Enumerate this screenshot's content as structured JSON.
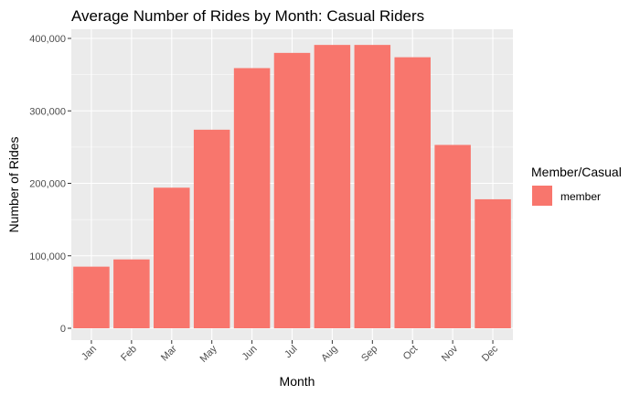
{
  "chart_data": {
    "type": "bar",
    "title": "Average Number of Rides by Month: Casual Riders",
    "xlabel": "Month",
    "ylabel": "Number of Rides",
    "categories": [
      "Jan",
      "Feb",
      "Mar",
      "May",
      "Jun",
      "Jul",
      "Aug",
      "Sep",
      "Oct",
      "Nov",
      "Dec"
    ],
    "series": [
      {
        "name": "member",
        "values": [
          85000,
          95000,
          194000,
          274000,
          359000,
          380000,
          391000,
          391000,
          374000,
          253000,
          178000
        ]
      }
    ],
    "ylim": [
      0,
      420000
    ],
    "y_ticks": [
      0,
      100000,
      200000,
      300000,
      400000
    ],
    "y_tick_labels": [
      "0",
      "100,000",
      "200,000",
      "300,000",
      "400,000"
    ],
    "legend": {
      "title": "Member/Casual",
      "position": "right"
    },
    "grid": true,
    "colors": {
      "bar": "#F8766D",
      "panel": "#EBEBEB",
      "grid": "#FFFFFF"
    }
  }
}
